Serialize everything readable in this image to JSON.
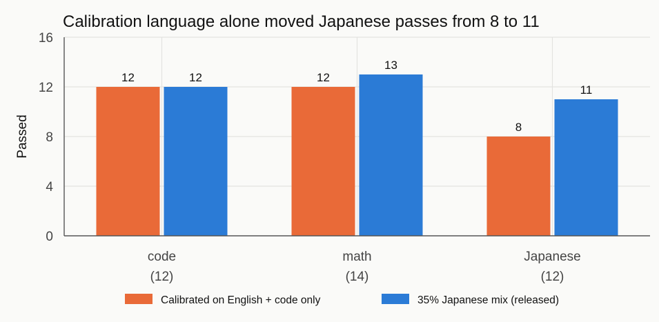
{
  "chart_data": {
    "type": "bar",
    "title": "Calibration language alone moved Japanese passes from 8 to 11",
    "ylabel": "Passed",
    "xlabel": "",
    "ylim": [
      0,
      16
    ],
    "yticks": [
      0,
      4,
      8,
      12,
      16
    ],
    "grid": true,
    "legend_position": "bottom",
    "categories": [
      {
        "name": "code",
        "total": "(12)"
      },
      {
        "name": "math",
        "total": "(14)"
      },
      {
        "name": "Japanese",
        "total": "(12)"
      }
    ],
    "series": [
      {
        "name": "Calibrated on English + code only",
        "color": "#e96a38",
        "values": [
          12,
          12,
          8
        ]
      },
      {
        "name": "35% Japanese mix (released)",
        "color": "#2b7bd6",
        "values": [
          12,
          13,
          11
        ]
      }
    ]
  }
}
